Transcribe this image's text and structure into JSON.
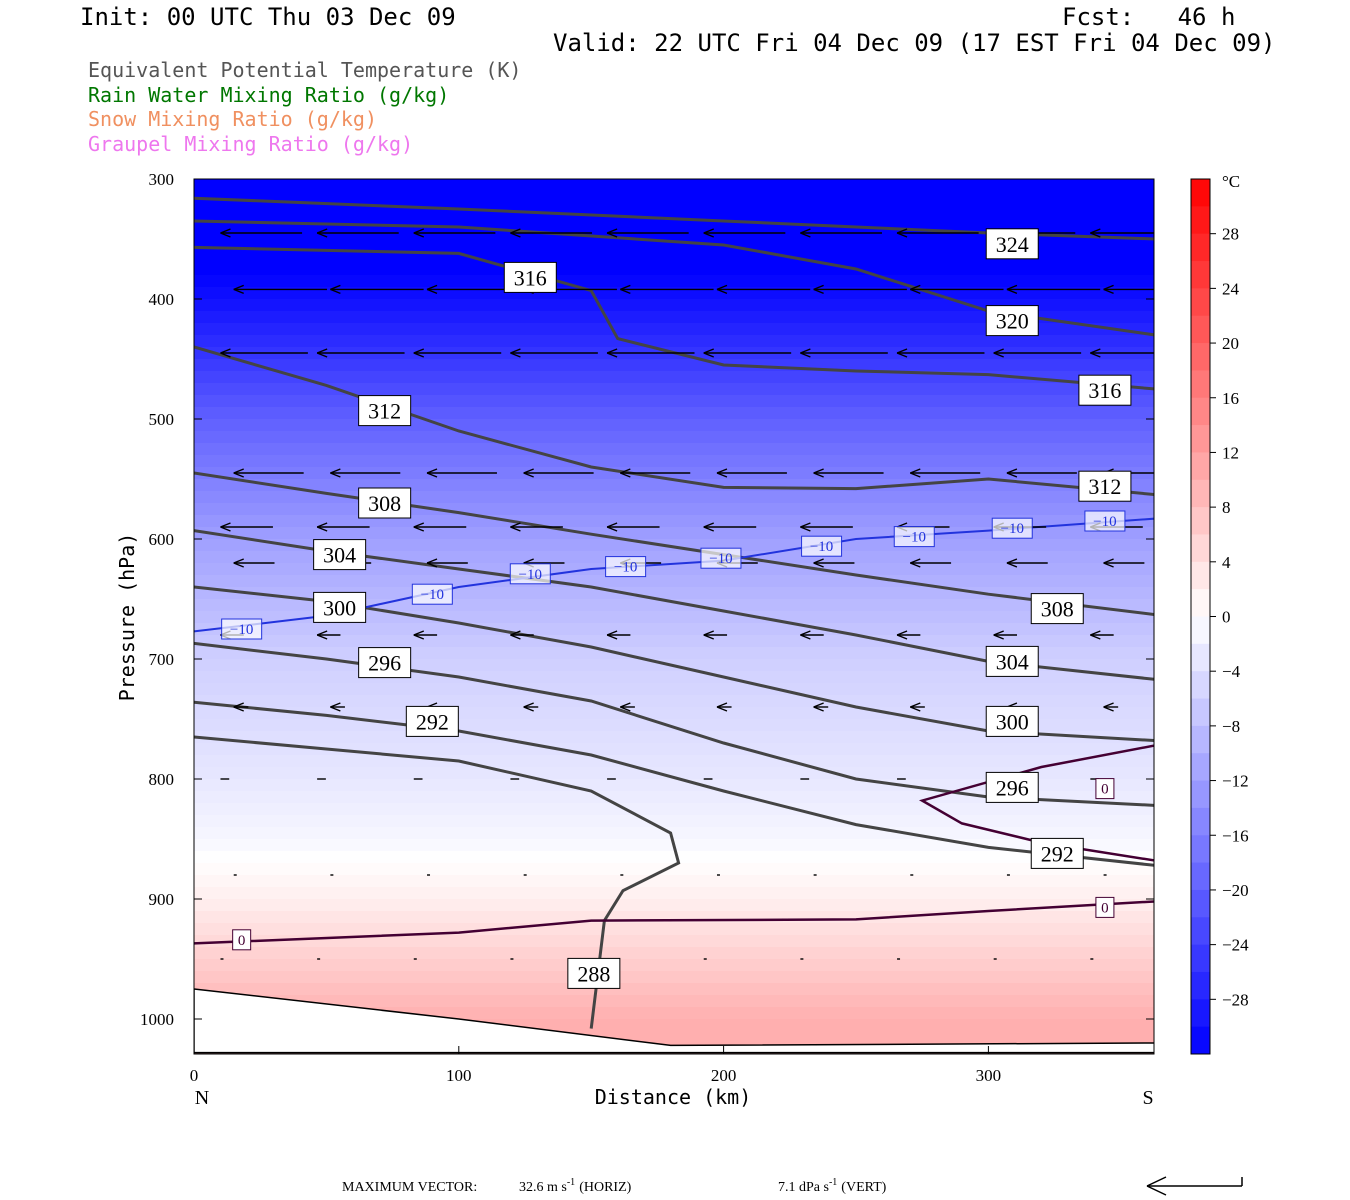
{
  "header": {
    "init": "Init: 00 UTC Thu 03 Dec 09",
    "fcst": "Fcst:   46 h",
    "valid": "Valid: 22 UTC Fri 04 Dec 09 (17 EST Fri 04 Dec 09)",
    "legend": [
      {
        "text": "Equivalent Potential Temperature (K)",
        "color": "#555555"
      },
      {
        "text": "Rain Water Mixing Ratio (g/kg)",
        "color": "#007700"
      },
      {
        "text": "Snow Mixing Ratio (g/kg)",
        "color": "#f09060"
      },
      {
        "text": "Graupel Mixing Ratio (g/kg)",
        "color": "#ee77ee"
      }
    ]
  },
  "chart_data": {
    "type": "cross-section",
    "xlabel": "Distance (km)",
    "ylabel": "Pressure (hPa)",
    "xlim": [
      0,
      363
    ],
    "ylim": [
      1028,
      300
    ],
    "x_ticks": [
      0,
      100,
      200,
      300
    ],
    "y_ticks": [
      300,
      400,
      500,
      600,
      700,
      800,
      900,
      1000
    ],
    "left_end_label": "N",
    "right_end_label": "S",
    "colorbar": {
      "unit": "°C",
      "tick_labels": [
        "28",
        "24",
        "20",
        "16",
        "12",
        "8",
        "4",
        "0",
        "−4",
        "−8",
        "−12",
        "−16",
        "−20",
        "−24",
        "−28"
      ],
      "tick_values": [
        28,
        24,
        20,
        16,
        12,
        8,
        4,
        0,
        -4,
        -8,
        -12,
        -16,
        -20,
        -24,
        -28
      ],
      "range": [
        -32,
        32
      ]
    },
    "theta_e_contours": [
      {
        "label": "324",
        "x": [
          0,
          100,
          200,
          250,
          300,
          363
        ],
        "p": [
          316,
          325,
          335,
          340,
          345,
          350
        ]
      },
      {
        "label": "320",
        "x": [
          0,
          100,
          200,
          250,
          300,
          363
        ],
        "p": [
          335,
          340,
          355,
          375,
          410,
          430
        ]
      },
      {
        "label": "316",
        "x": [
          0,
          100,
          150,
          160,
          200,
          250,
          300,
          363
        ],
        "p": [
          357,
          362,
          393,
          433,
          455,
          460,
          463,
          475
        ]
      },
      {
        "label": "312",
        "x": [
          0,
          50,
          100,
          150,
          200,
          250,
          300,
          363
        ],
        "p": [
          440,
          472,
          510,
          540,
          557,
          558,
          550,
          563
        ]
      },
      {
        "label": "308",
        "x": [
          0,
          50,
          100,
          150,
          200,
          250,
          300,
          363
        ],
        "p": [
          545,
          562,
          578,
          596,
          613,
          630,
          646,
          663
        ]
      },
      {
        "label": "304",
        "x": [
          0,
          50,
          100,
          150,
          200,
          250,
          300,
          363
        ],
        "p": [
          593,
          610,
          625,
          640,
          660,
          680,
          702,
          717
        ]
      },
      {
        "label": "300",
        "x": [
          0,
          50,
          100,
          150,
          200,
          250,
          300,
          363
        ],
        "p": [
          640,
          652,
          670,
          690,
          715,
          740,
          760,
          768
        ]
      },
      {
        "label": "296",
        "x": [
          0,
          50,
          100,
          150,
          200,
          250,
          300,
          363
        ],
        "p": [
          687,
          700,
          715,
          735,
          770,
          800,
          815,
          822
        ]
      },
      {
        "label": "292",
        "x": [
          0,
          50,
          100,
          150,
          200,
          250,
          300,
          363
        ],
        "p": [
          736,
          747,
          760,
          780,
          810,
          838,
          857,
          872
        ]
      },
      {
        "label": "288",
        "x": [
          0,
          50,
          100,
          150,
          180,
          183,
          162,
          155,
          150
        ],
        "p": [
          765,
          775,
          785,
          810,
          845,
          870,
          893,
          918,
          1008
        ]
      }
    ],
    "isotherm_minus10": {
      "label": "−10",
      "x": [
        0,
        50,
        100,
        150,
        200,
        250,
        300,
        363
      ],
      "p": [
        677,
        664,
        640,
        625,
        618,
        600,
        593,
        583
      ]
    },
    "isotherm_zero_lower": {
      "label": "0",
      "x": [
        0,
        100,
        150,
        250,
        300,
        363
      ],
      "p": [
        937,
        928,
        918,
        917,
        910,
        902
      ]
    },
    "isotherm_zero_upper": {
      "label": "0",
      "x": [
        363,
        320,
        275,
        290,
        320,
        363
      ],
      "p": [
        772,
        790,
        818,
        837,
        853,
        868
      ]
    },
    "contour_label_positions": [
      {
        "text": "324",
        "x": 309,
        "p": 354
      },
      {
        "text": "316",
        "x": 127,
        "p": 382
      },
      {
        "text": "320",
        "x": 309,
        "p": 418
      },
      {
        "text": "316",
        "x": 344,
        "p": 476
      },
      {
        "text": "312",
        "x": 72,
        "p": 493
      },
      {
        "text": "312",
        "x": 344,
        "p": 556
      },
      {
        "text": "308",
        "x": 72,
        "p": 570
      },
      {
        "text": "304",
        "x": 55,
        "p": 613
      },
      {
        "text": "300",
        "x": 55,
        "p": 657
      },
      {
        "text": "308",
        "x": 326,
        "p": 658
      },
      {
        "text": "304",
        "x": 309,
        "p": 702
      },
      {
        "text": "296",
        "x": 72,
        "p": 703
      },
      {
        "text": "300",
        "x": 309,
        "p": 752
      },
      {
        "text": "292",
        "x": 90,
        "p": 752
      },
      {
        "text": "296",
        "x": 309,
        "p": 807
      },
      {
        "text": "292",
        "x": 326,
        "p": 862
      },
      {
        "text": "288",
        "x": 151,
        "p": 962
      }
    ],
    "minus10_label_positions": [
      {
        "x": 18,
        "p": 675
      },
      {
        "x": 90,
        "p": 646
      },
      {
        "x": 127,
        "p": 629
      },
      {
        "x": 163,
        "p": 623
      },
      {
        "x": 199,
        "p": 616
      },
      {
        "x": 237,
        "p": 606
      },
      {
        "x": 272,
        "p": 598
      },
      {
        "x": 309,
        "p": 591
      },
      {
        "x": 344,
        "p": 585
      }
    ],
    "zero_label_positions": [
      {
        "x": 18,
        "p": 934
      },
      {
        "x": 344,
        "p": 808
      },
      {
        "x": 344,
        "p": 907
      }
    ],
    "wind_speed_levels": [
      {
        "p": 345,
        "u": 28
      },
      {
        "p": 392,
        "u": 32
      },
      {
        "p": 445,
        "u": 30
      },
      {
        "p": 545,
        "u": 24
      },
      {
        "p": 590,
        "u": 18
      },
      {
        "p": 620,
        "u": 14
      },
      {
        "p": 680,
        "u": 8
      },
      {
        "p": 740,
        "u": 5
      },
      {
        "p": 800,
        "u": 3
      },
      {
        "p": 880,
        "u": 1
      },
      {
        "p": 950,
        "u": 0.6
      }
    ],
    "isotherm_profile": {
      "p": [
        300,
        400,
        500,
        600,
        700,
        800,
        850,
        900,
        950,
        1000
      ],
      "t": [
        -38,
        -30,
        -20,
        -12,
        -6,
        -3,
        -1,
        2,
        6,
        10
      ]
    }
  },
  "footer": {
    "prefix": "MAXIMUM VECTOR:",
    "horiz_value": "32.6 m s",
    "horiz_exp": "-1",
    "horiz_unit": "(HORIZ)",
    "vert_value": "7.1 dPa s",
    "vert_exp": "-1",
    "vert_unit": "(VERT)"
  }
}
